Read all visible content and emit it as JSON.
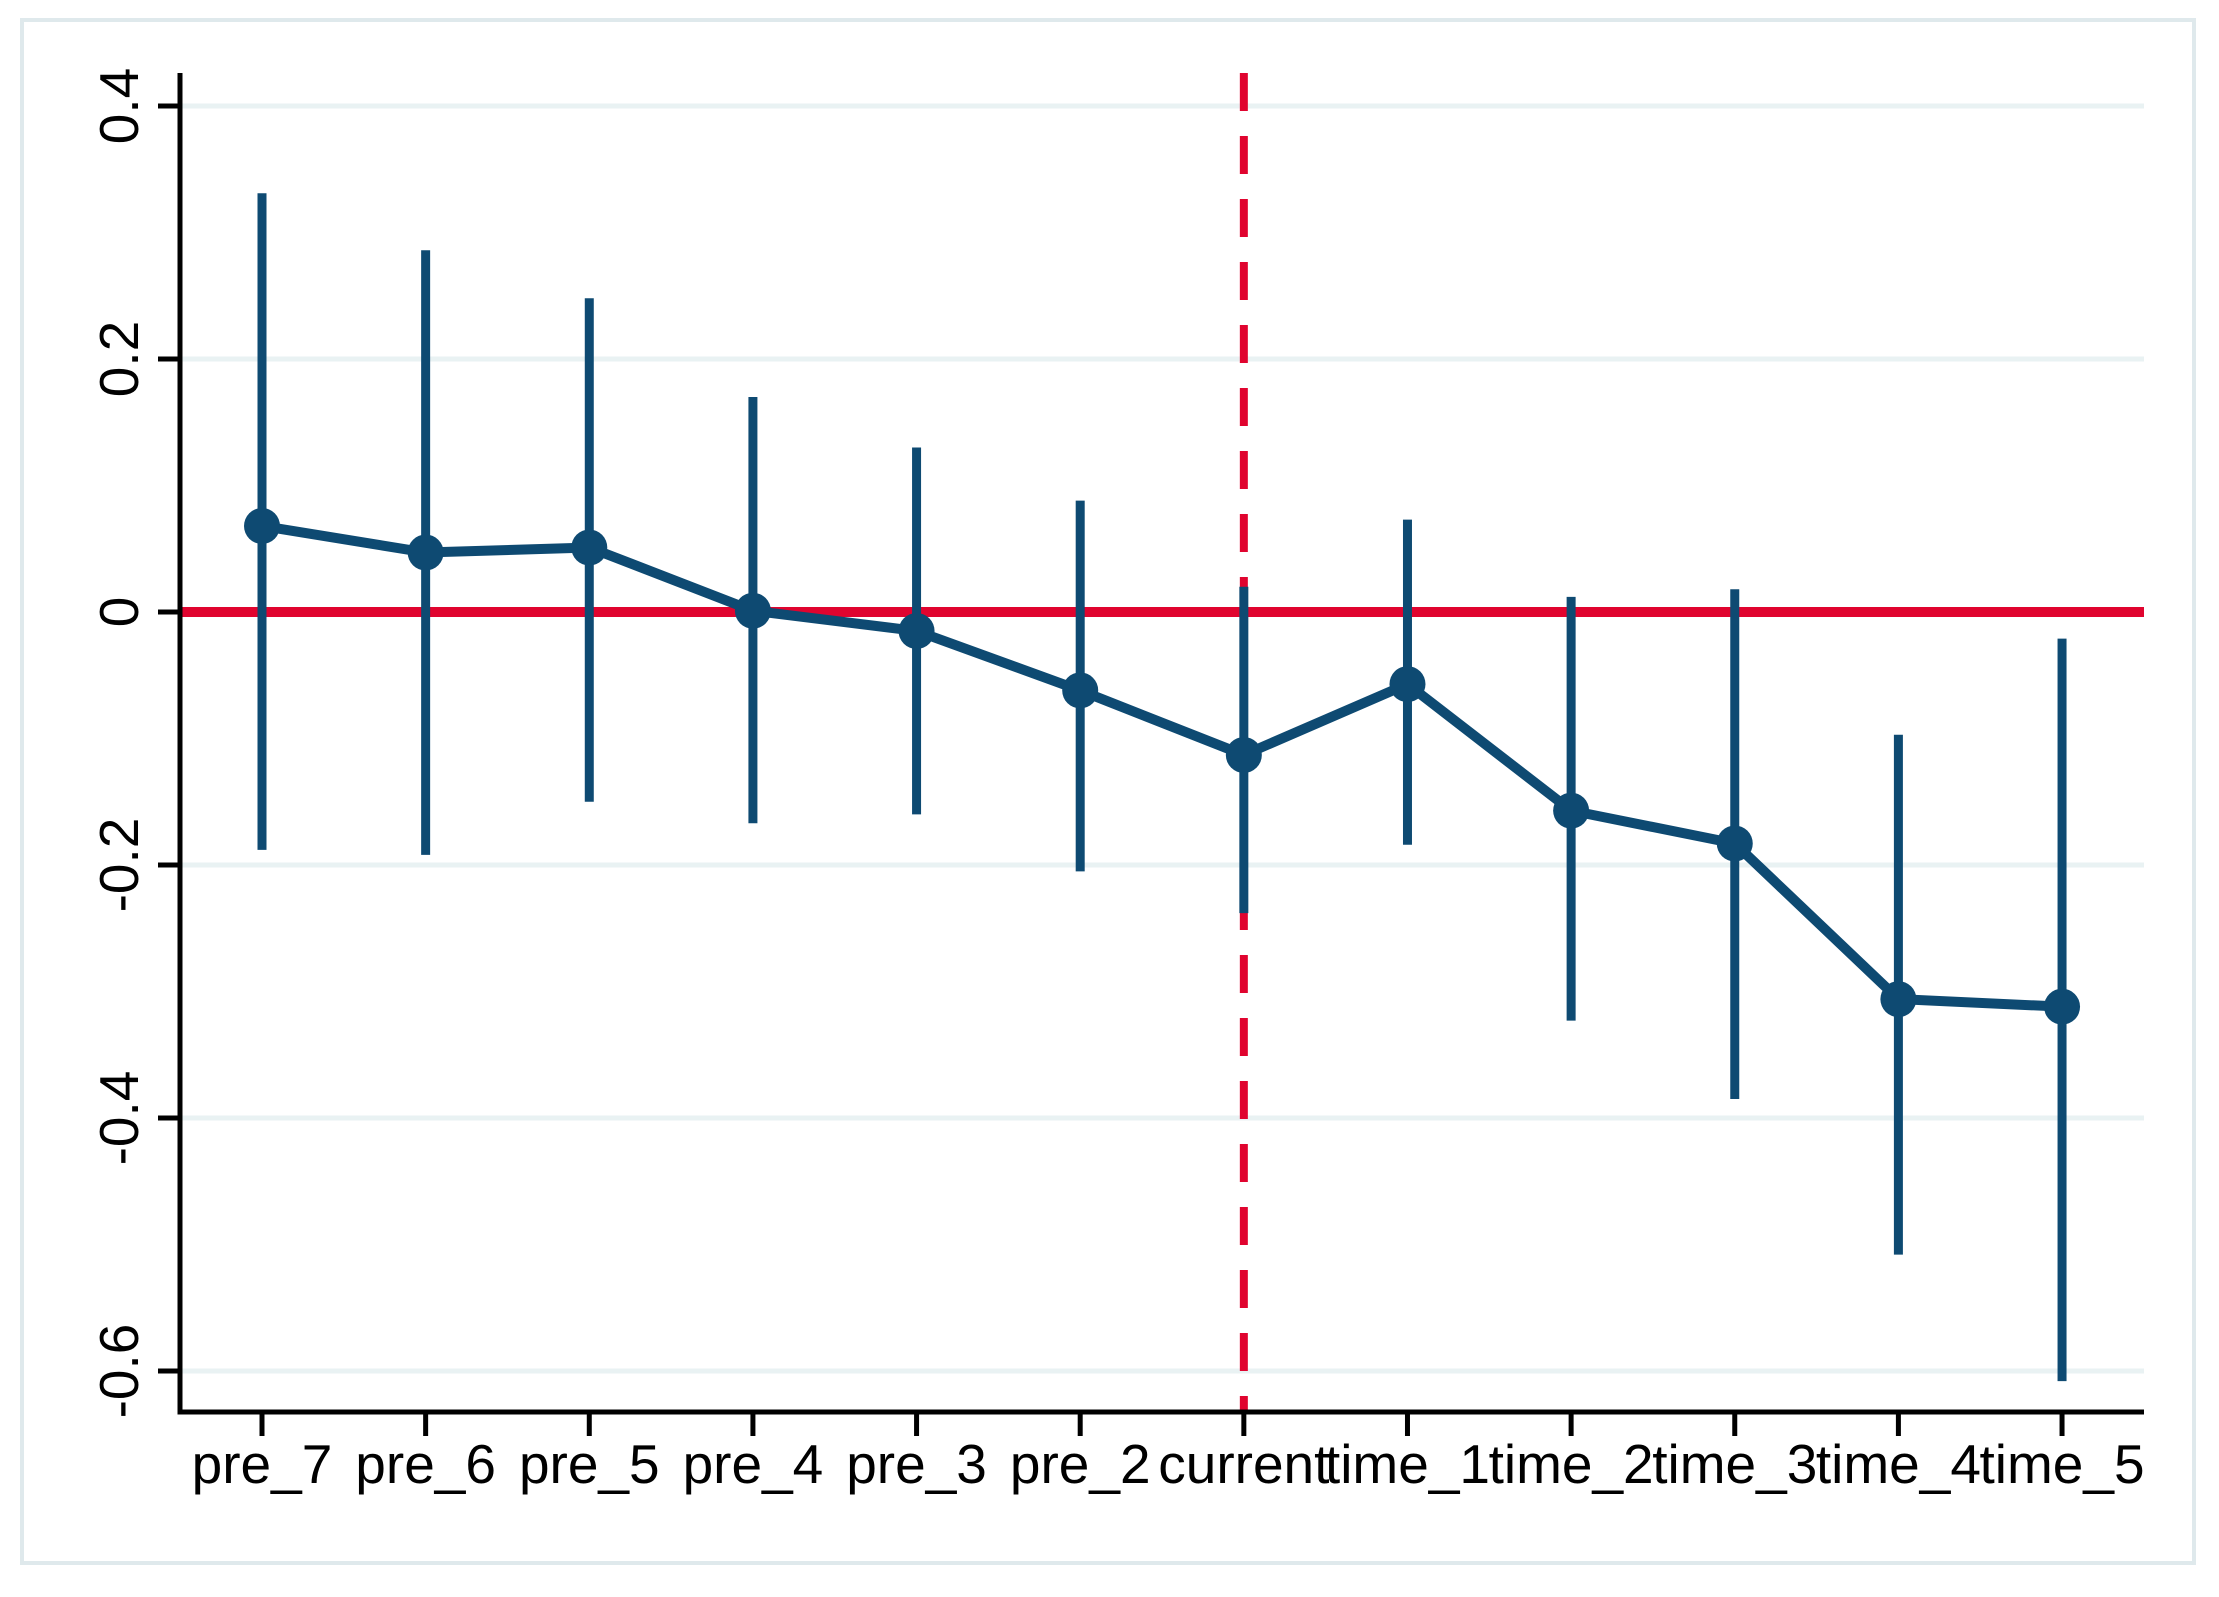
{
  "figure": {
    "background": "#ffffff",
    "frame_color": "#dfe9ec"
  },
  "chart_data": {
    "type": "line",
    "subtype": "coefficient-plot-with-confidence-intervals",
    "title": "",
    "xlabel": "",
    "ylabel": "",
    "categories": [
      "pre_7",
      "pre_6",
      "pre_5",
      "pre_4",
      "pre_3",
      "pre_2",
      "current",
      "time_1",
      "time_2",
      "time_3",
      "time_4",
      "time_5"
    ],
    "series": [
      {
        "name": "estimate",
        "color": "#0e4a72",
        "values": [
          0.068,
          0.047,
          0.051,
          0.001,
          -0.015,
          -0.062,
          -0.113,
          -0.057,
          -0.157,
          -0.183,
          -0.306,
          -0.312
        ]
      }
    ],
    "ci": {
      "low": [
        -0.188,
        -0.192,
        -0.15,
        -0.167,
        -0.16,
        -0.205,
        -0.238,
        -0.184,
        -0.323,
        -0.385,
        -0.508,
        -0.608
      ],
      "high": [
        0.331,
        0.286,
        0.248,
        0.17,
        0.13,
        0.088,
        0.02,
        0.073,
        0.012,
        0.018,
        -0.097,
        -0.021
      ],
      "color": "#0e4a72"
    },
    "y_ticks": {
      "values": [
        0.4,
        0.2,
        0,
        -0.2,
        -0.4,
        -0.6
      ],
      "labels": [
        "0.4",
        "0.2",
        "0",
        "-0.2",
        "-0.4",
        "-0.6"
      ]
    },
    "ylim": [
      -0.63,
      0.43
    ],
    "grid": true,
    "gridline_color": "#e9f2f3",
    "axis_color": "#000000",
    "marker": "filled-circle",
    "legend": "none",
    "reference_lines": {
      "hline": {
        "y": 0,
        "color": "#e0042f",
        "style": "solid"
      },
      "vline": {
        "category": "current",
        "color": "#e0042f",
        "style": "dashed"
      }
    }
  }
}
